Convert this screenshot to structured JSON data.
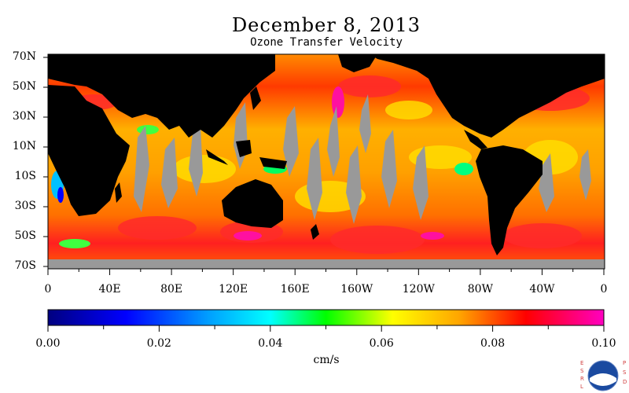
{
  "title": "December 8, 2013",
  "subtitle": "Ozone Transfer Velocity",
  "lat_labels": [
    "70N",
    "50N",
    "30N",
    "10N",
    "10S",
    "30S",
    "50S",
    "70S"
  ],
  "lon_labels": [
    "0",
    "40E",
    "80E",
    "120E",
    "160E",
    "160W",
    "120W",
    "80W",
    "40W",
    "0"
  ],
  "colorbar": {
    "min": 0.0,
    "max": 0.1,
    "tick_labels": [
      "0.00",
      "0.02",
      "0.04",
      "0.06",
      "0.08",
      "0.10"
    ],
    "units": "cm/s"
  },
  "colors": {
    "land": "#000000",
    "missing": "#999999",
    "scale": [
      "#000080",
      "#0000ff",
      "#00a0ff",
      "#00ffff",
      "#00ff00",
      "#ffff00",
      "#ffa500",
      "#ff0000",
      "#ff00c0"
    ]
  },
  "logo": {
    "left_text": "ESRL",
    "right_text": "PSD",
    "seal_text": "NOAA"
  },
  "chart_data": {
    "type": "heatmap",
    "title": "December 8, 2013",
    "subtitle": "Ozone Transfer Velocity",
    "x_ticks": [
      "0",
      "40E",
      "80E",
      "120E",
      "160E",
      "160W",
      "120W",
      "80W",
      "40W",
      "0"
    ],
    "y_ticks": [
      "70N",
      "50N",
      "30N",
      "10N",
      "10S",
      "30S",
      "50S",
      "70S"
    ],
    "xlim": [
      0,
      360
    ],
    "ylim": [
      -70,
      70
    ],
    "value_range": [
      0.0,
      0.1
    ],
    "units": "cm/s",
    "colorbar_ticks": [
      0.0,
      0.02,
      0.04,
      0.06,
      0.08,
      0.1
    ],
    "grid": false
  }
}
